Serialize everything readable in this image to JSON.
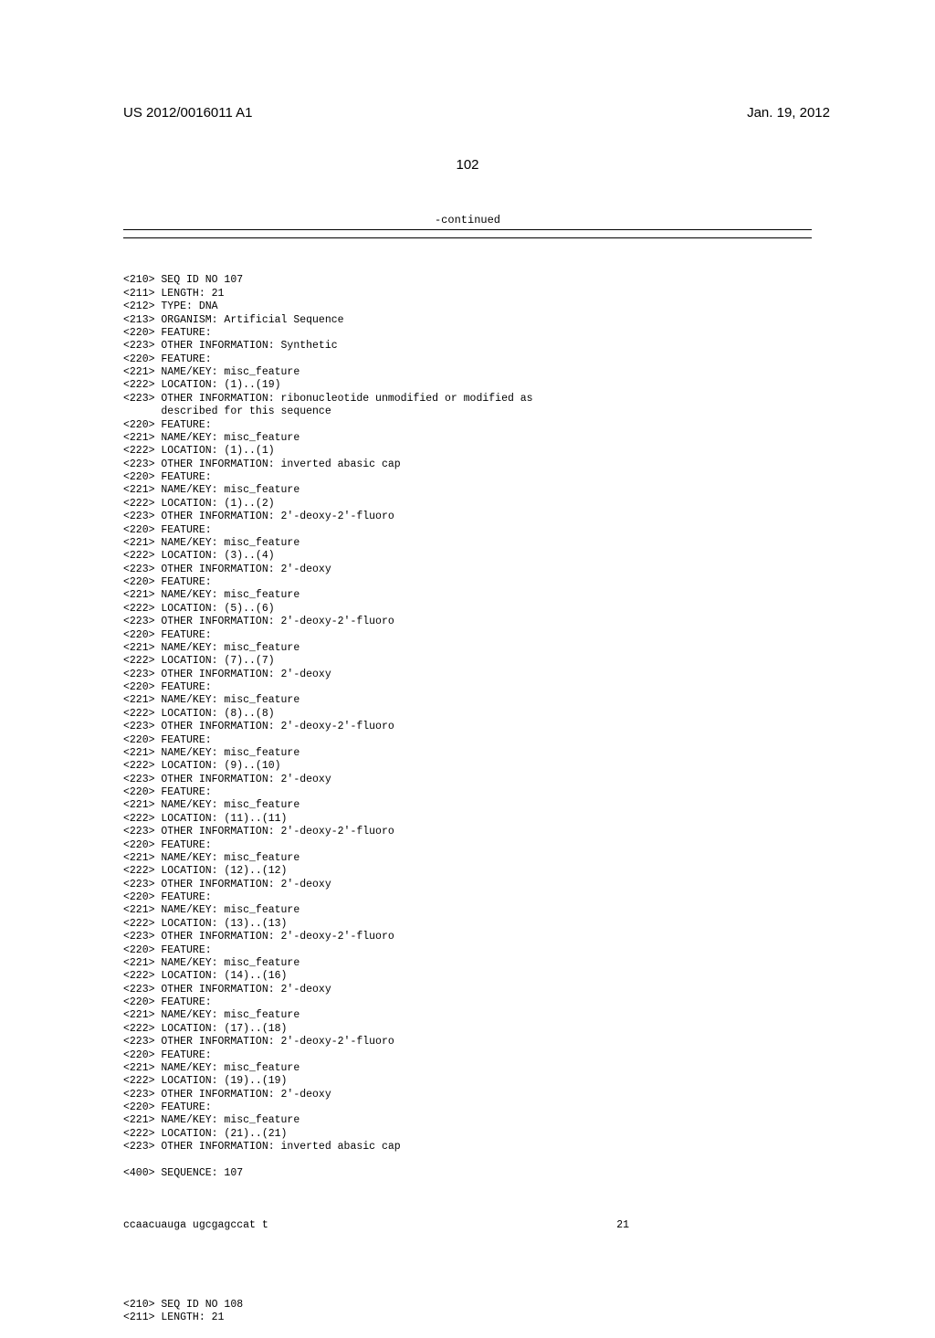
{
  "header": {
    "pub_number": "US 2012/0016011 A1",
    "pub_date": "Jan. 19, 2012"
  },
  "page_number": "102",
  "continued_label": "-continued",
  "sequence": {
    "entries": [
      "<210> SEQ ID NO 107",
      "<211> LENGTH: 21",
      "<212> TYPE: DNA",
      "<213> ORGANISM: Artificial Sequence",
      "<220> FEATURE:",
      "<223> OTHER INFORMATION: Synthetic",
      "<220> FEATURE:",
      "<221> NAME/KEY: misc_feature",
      "<222> LOCATION: (1)..(19)",
      "<223> OTHER INFORMATION: ribonucleotide unmodified or modified as",
      "      described for this sequence",
      "<220> FEATURE:",
      "<221> NAME/KEY: misc_feature",
      "<222> LOCATION: (1)..(1)",
      "<223> OTHER INFORMATION: inverted abasic cap",
      "<220> FEATURE:",
      "<221> NAME/KEY: misc_feature",
      "<222> LOCATION: (1)..(2)",
      "<223> OTHER INFORMATION: 2'-deoxy-2'-fluoro",
      "<220> FEATURE:",
      "<221> NAME/KEY: misc_feature",
      "<222> LOCATION: (3)..(4)",
      "<223> OTHER INFORMATION: 2'-deoxy",
      "<220> FEATURE:",
      "<221> NAME/KEY: misc_feature",
      "<222> LOCATION: (5)..(6)",
      "<223> OTHER INFORMATION: 2'-deoxy-2'-fluoro",
      "<220> FEATURE:",
      "<221> NAME/KEY: misc_feature",
      "<222> LOCATION: (7)..(7)",
      "<223> OTHER INFORMATION: 2'-deoxy",
      "<220> FEATURE:",
      "<221> NAME/KEY: misc_feature",
      "<222> LOCATION: (8)..(8)",
      "<223> OTHER INFORMATION: 2'-deoxy-2'-fluoro",
      "<220> FEATURE:",
      "<221> NAME/KEY: misc_feature",
      "<222> LOCATION: (9)..(10)",
      "<223> OTHER INFORMATION: 2'-deoxy",
      "<220> FEATURE:",
      "<221> NAME/KEY: misc_feature",
      "<222> LOCATION: (11)..(11)",
      "<223> OTHER INFORMATION: 2'-deoxy-2'-fluoro",
      "<220> FEATURE:",
      "<221> NAME/KEY: misc_feature",
      "<222> LOCATION: (12)..(12)",
      "<223> OTHER INFORMATION: 2'-deoxy",
      "<220> FEATURE:",
      "<221> NAME/KEY: misc_feature",
      "<222> LOCATION: (13)..(13)",
      "<223> OTHER INFORMATION: 2'-deoxy-2'-fluoro",
      "<220> FEATURE:",
      "<221> NAME/KEY: misc_feature",
      "<222> LOCATION: (14)..(16)",
      "<223> OTHER INFORMATION: 2'-deoxy",
      "<220> FEATURE:",
      "<221> NAME/KEY: misc_feature",
      "<222> LOCATION: (17)..(18)",
      "<223> OTHER INFORMATION: 2'-deoxy-2'-fluoro",
      "<220> FEATURE:",
      "<221> NAME/KEY: misc_feature",
      "<222> LOCATION: (19)..(19)",
      "<223> OTHER INFORMATION: 2'-deoxy",
      "<220> FEATURE:",
      "<221> NAME/KEY: misc_feature",
      "<222> LOCATION: (21)..(21)",
      "<223> OTHER INFORMATION: inverted abasic cap",
      "",
      "<400> SEQUENCE: 107"
    ],
    "seq_data": "ccaacuauga ugcgagccat t",
    "seq_length": "21",
    "next_entries": [
      "<210> SEQ ID NO 108",
      "<211> LENGTH: 21"
    ]
  }
}
